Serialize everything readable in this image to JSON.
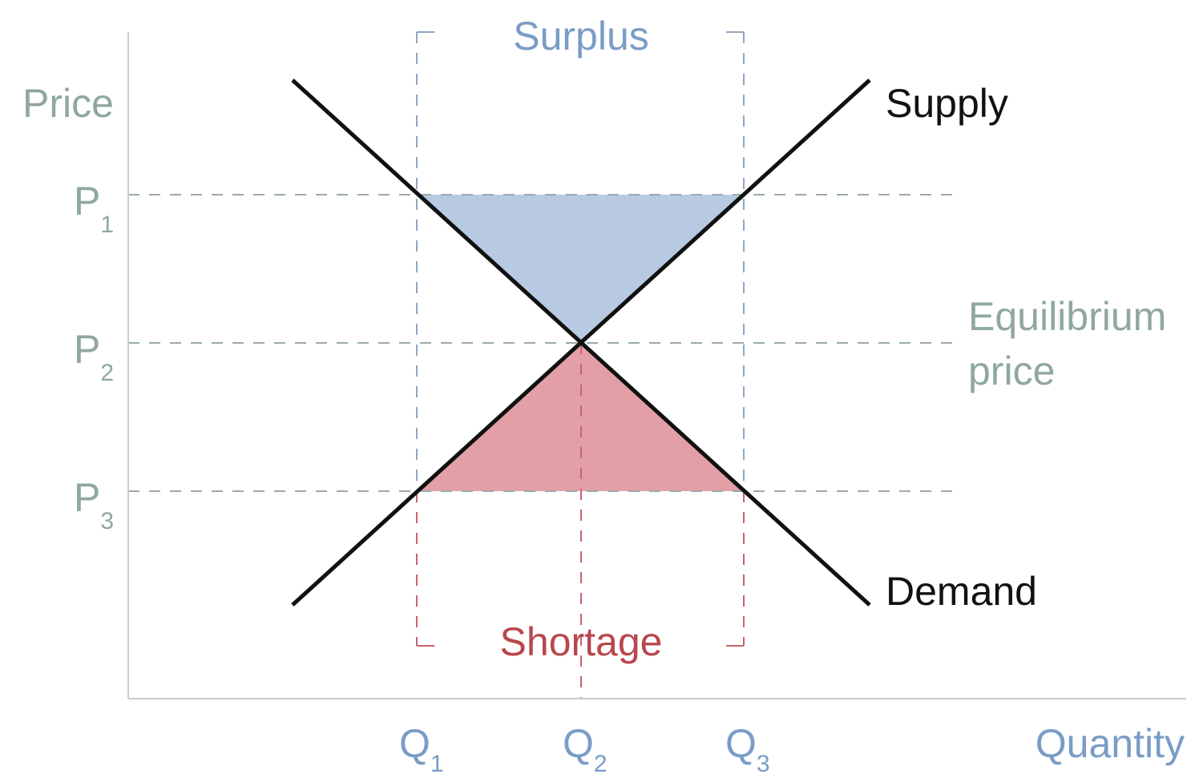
{
  "axes": {
    "y_label": "Price",
    "x_label": "Quantity"
  },
  "price_levels": [
    {
      "main": "P",
      "sub": "1"
    },
    {
      "main": "P",
      "sub": "2"
    },
    {
      "main": "P",
      "sub": "3"
    }
  ],
  "quantity_levels": [
    {
      "main": "Q",
      "sub": "1"
    },
    {
      "main": "Q",
      "sub": "2"
    },
    {
      "main": "Q",
      "sub": "3"
    }
  ],
  "curves": {
    "supply": "Supply",
    "demand": "Demand"
  },
  "regions": {
    "surplus": "Surplus",
    "shortage": "Shortage"
  },
  "equilibrium": [
    "Equilibrium",
    "price"
  ]
}
